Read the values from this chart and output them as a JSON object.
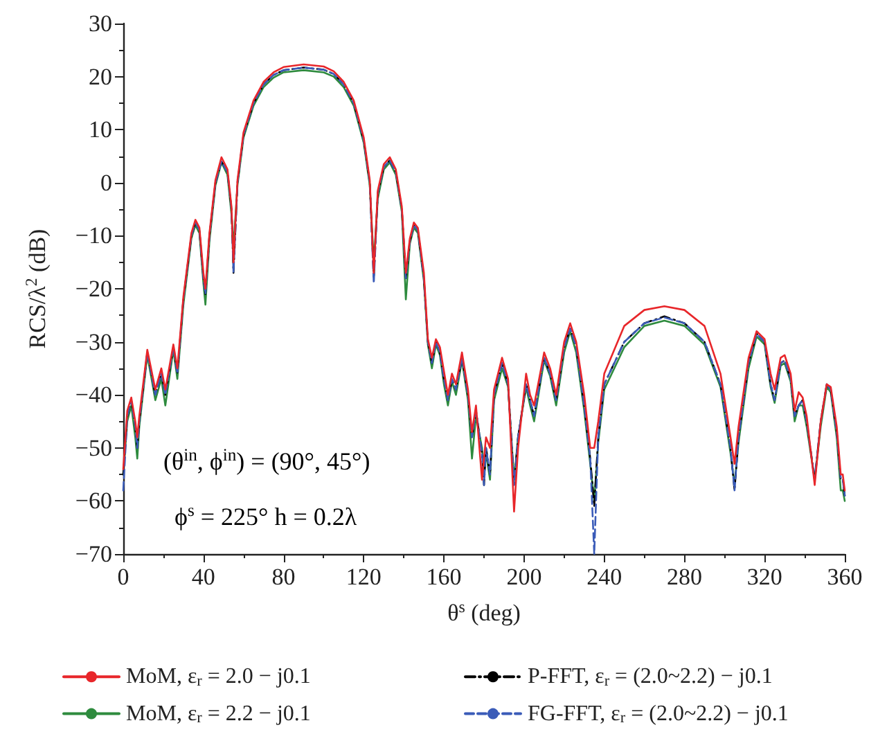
{
  "chart_data": {
    "type": "line",
    "xlabel": "θ$^{s}$ (deg)",
    "ylabel": "RCS/λ$^{2}$ (dB)",
    "annotations": [
      "(θ$^{in}$, ϕ$^{in}$) = (90°, 45°)",
      "ϕ$^{s}$ = 225° h = 0.2λ"
    ],
    "xlim": [
      0,
      360
    ],
    "xticks": [
      0,
      40,
      80,
      120,
      160,
      200,
      240,
      280,
      320,
      360
    ],
    "ylim": [
      -70,
      30
    ],
    "yticks": [
      -70,
      -60,
      -50,
      -40,
      -30,
      -20,
      -10,
      0,
      10,
      20,
      30
    ],
    "grid": false,
    "legend": "bottom",
    "marker": "none",
    "x": [
      0,
      2,
      4,
      6,
      7,
      8,
      12,
      16,
      19,
      21,
      25,
      27,
      30,
      34,
      36,
      38,
      40,
      41,
      43,
      46,
      49,
      52,
      54,
      55,
      57,
      60,
      65,
      70,
      75,
      80,
      90,
      100,
      105,
      110,
      115,
      120,
      123,
      125,
      127,
      130,
      133,
      136,
      139,
      141,
      143,
      145,
      147,
      150,
      152,
      154,
      156,
      158,
      160,
      162,
      164,
      166,
      169,
      172,
      174,
      176,
      179,
      180,
      181,
      183,
      185,
      189,
      192,
      195,
      197,
      201,
      203,
      205,
      210,
      213,
      216,
      220,
      223,
      226,
      230,
      233,
      235,
      237,
      240,
      250,
      260,
      270,
      280,
      290,
      298,
      303,
      305,
      307,
      312,
      316,
      320,
      323,
      325,
      328,
      330,
      333,
      335,
      337,
      339,
      341,
      345,
      348,
      351,
      353,
      356,
      358,
      359,
      360
    ],
    "series": [
      {
        "name": "MoM, ε$_{r}$ = 2.0 − j0.1",
        "color": "#e8262a",
        "line_style": "solid",
        "values": [
          -54,
          -43,
          -40.5,
          -45,
          -48,
          -44,
          -31.5,
          -39,
          -35,
          -39,
          -30.5,
          -35,
          -21.5,
          -9.5,
          -7,
          -8.5,
          -17,
          -20,
          -9.5,
          0.5,
          4.8,
          2.5,
          -4.5,
          -15,
          0.5,
          9.5,
          15.5,
          19,
          20.8,
          21.8,
          22.3,
          21.9,
          21,
          19,
          15.5,
          8.5,
          0.5,
          -17,
          -1.5,
          3.5,
          4.8,
          2.5,
          -4.5,
          -17,
          -10.5,
          -7.5,
          -8.5,
          -17,
          -29.5,
          -33,
          -29.5,
          -31,
          -35.5,
          -40,
          -36,
          -38,
          -32,
          -39,
          -47,
          -42,
          -56,
          -52,
          -48,
          -50,
          -39,
          -33,
          -37,
          -62,
          -50,
          -36,
          -40,
          -42,
          -32,
          -35,
          -40,
          -30,
          -26.5,
          -30,
          -40,
          -50,
          -50,
          -45,
          -36,
          -27,
          -24,
          -23.3,
          -24,
          -27,
          -36,
          -48,
          -53,
          -46,
          -33,
          -28,
          -29.5,
          -36,
          -39,
          -33,
          -32.5,
          -36,
          -43,
          -39.5,
          -40.5,
          -44,
          -57,
          -45,
          -38,
          -38.5,
          -46,
          -55,
          -55,
          -58
        ]
      },
      {
        "name": "MoM, ε$_{r}$ = 2.2 − j0.1",
        "color": "#2e8b3e",
        "line_style": "solid",
        "values": [
          -55,
          -45,
          -42,
          -48,
          -52,
          -46,
          -32.5,
          -41,
          -37,
          -42,
          -31.5,
          -37,
          -23,
          -10.5,
          -8,
          -9.5,
          -19,
          -23,
          -11,
          -0.5,
          3.8,
          1.5,
          -6,
          -12,
          -0.5,
          8.5,
          14.5,
          18,
          19.8,
          20.8,
          21.2,
          20.8,
          20,
          18,
          14.5,
          7.5,
          -0.5,
          -15,
          -3,
          2.5,
          3.8,
          1.5,
          -5.5,
          -22,
          -11.5,
          -8.5,
          -9.5,
          -18.5,
          -30.5,
          -35,
          -30.5,
          -32.5,
          -38,
          -42,
          -37.5,
          -40,
          -33.5,
          -41,
          -52,
          -44,
          -50,
          -55,
          -51,
          -56,
          -41,
          -35,
          -38.5,
          -56,
          -48,
          -38.5,
          -42,
          -45,
          -33.5,
          -36.5,
          -42,
          -32,
          -28,
          -32,
          -43,
          -53,
          -60,
          -49,
          -39,
          -31,
          -27,
          -26,
          -27,
          -30.5,
          -38.5,
          -51,
          -57,
          -49,
          -35,
          -29,
          -30.5,
          -38.5,
          -41.5,
          -34.5,
          -34,
          -37.5,
          -45,
          -42,
          -42,
          -46,
          -56,
          -46,
          -38.5,
          -39.5,
          -48,
          -58,
          -58,
          -60
        ]
      },
      {
        "name": "P-FFT, ε$_{r}$ = (2.0~2.2) − j0.1",
        "color": "#000000",
        "line_style": "dashdot",
        "values": [
          -55,
          -44,
          -41,
          -46,
          -50,
          -45,
          -32,
          -40,
          -36,
          -40,
          -31,
          -36,
          -22,
          -10,
          -7.5,
          -9,
          -18,
          -21,
          -10,
          0,
          4,
          2,
          -5,
          -17,
          0,
          9,
          15,
          18.5,
          20.3,
          21.2,
          21.7,
          21.3,
          20.5,
          18.5,
          15,
          8,
          0,
          -18,
          -2,
          3,
          4.2,
          2,
          -5,
          -18,
          -11,
          -8,
          -9,
          -18,
          -30,
          -34,
          -30,
          -32,
          -37,
          -41,
          -37,
          -39,
          -33,
          -40,
          -48,
          -43,
          -51,
          -57,
          -50,
          -55,
          -40,
          -34,
          -38,
          -57,
          -48,
          -38,
          -41,
          -44,
          -33,
          -36,
          -41,
          -31,
          -27.5,
          -31,
          -42,
          -52,
          -61,
          -48,
          -38,
          -30,
          -26.5,
          -25.2,
          -26.5,
          -30,
          -38,
          -50,
          -58,
          -48,
          -34,
          -28.5,
          -30,
          -38,
          -41,
          -34,
          -33.5,
          -37,
          -44,
          -42,
          -41,
          -45,
          -56,
          -45,
          -38,
          -39,
          -47,
          -56,
          -56,
          -59
        ]
      },
      {
        "name": "FG-FFT, ε$_{r}$ = (2.0~2.2) − j0.1",
        "color": "#3a5bb8",
        "line_style": "dashed",
        "values": [
          -58,
          -44,
          -41,
          -46,
          -50,
          -45,
          -32,
          -40,
          -36,
          -40,
          -31,
          -36,
          -22,
          -10,
          -7.5,
          -9,
          -18,
          -21,
          -10,
          0,
          4,
          2,
          -5,
          -17,
          0,
          9,
          15,
          18.5,
          20.3,
          21.2,
          21.7,
          21.3,
          20.5,
          18.5,
          15,
          8,
          0,
          -19,
          -2,
          3,
          4.2,
          2,
          -5,
          -18,
          -11,
          -8,
          -9,
          -18,
          -30,
          -34,
          -30,
          -32,
          -37,
          -41,
          -37,
          -39,
          -33,
          -40,
          -48,
          -43,
          -51,
          -57,
          -50,
          -55,
          -40,
          -34,
          -38,
          -57,
          -48,
          -38,
          -41,
          -44,
          -33,
          -36,
          -41,
          -31,
          -27.5,
          -31,
          -42,
          -52,
          -70,
          -48,
          -38,
          -30,
          -26.5,
          -25.4,
          -26.5,
          -30,
          -38,
          -50,
          -58,
          -48,
          -34,
          -28.5,
          -30,
          -38,
          -41,
          -34,
          -33.5,
          -37,
          -44,
          -42,
          -41,
          -45,
          -56,
          -45,
          -38,
          -39,
          -47,
          -56,
          -56,
          -59
        ]
      }
    ]
  }
}
